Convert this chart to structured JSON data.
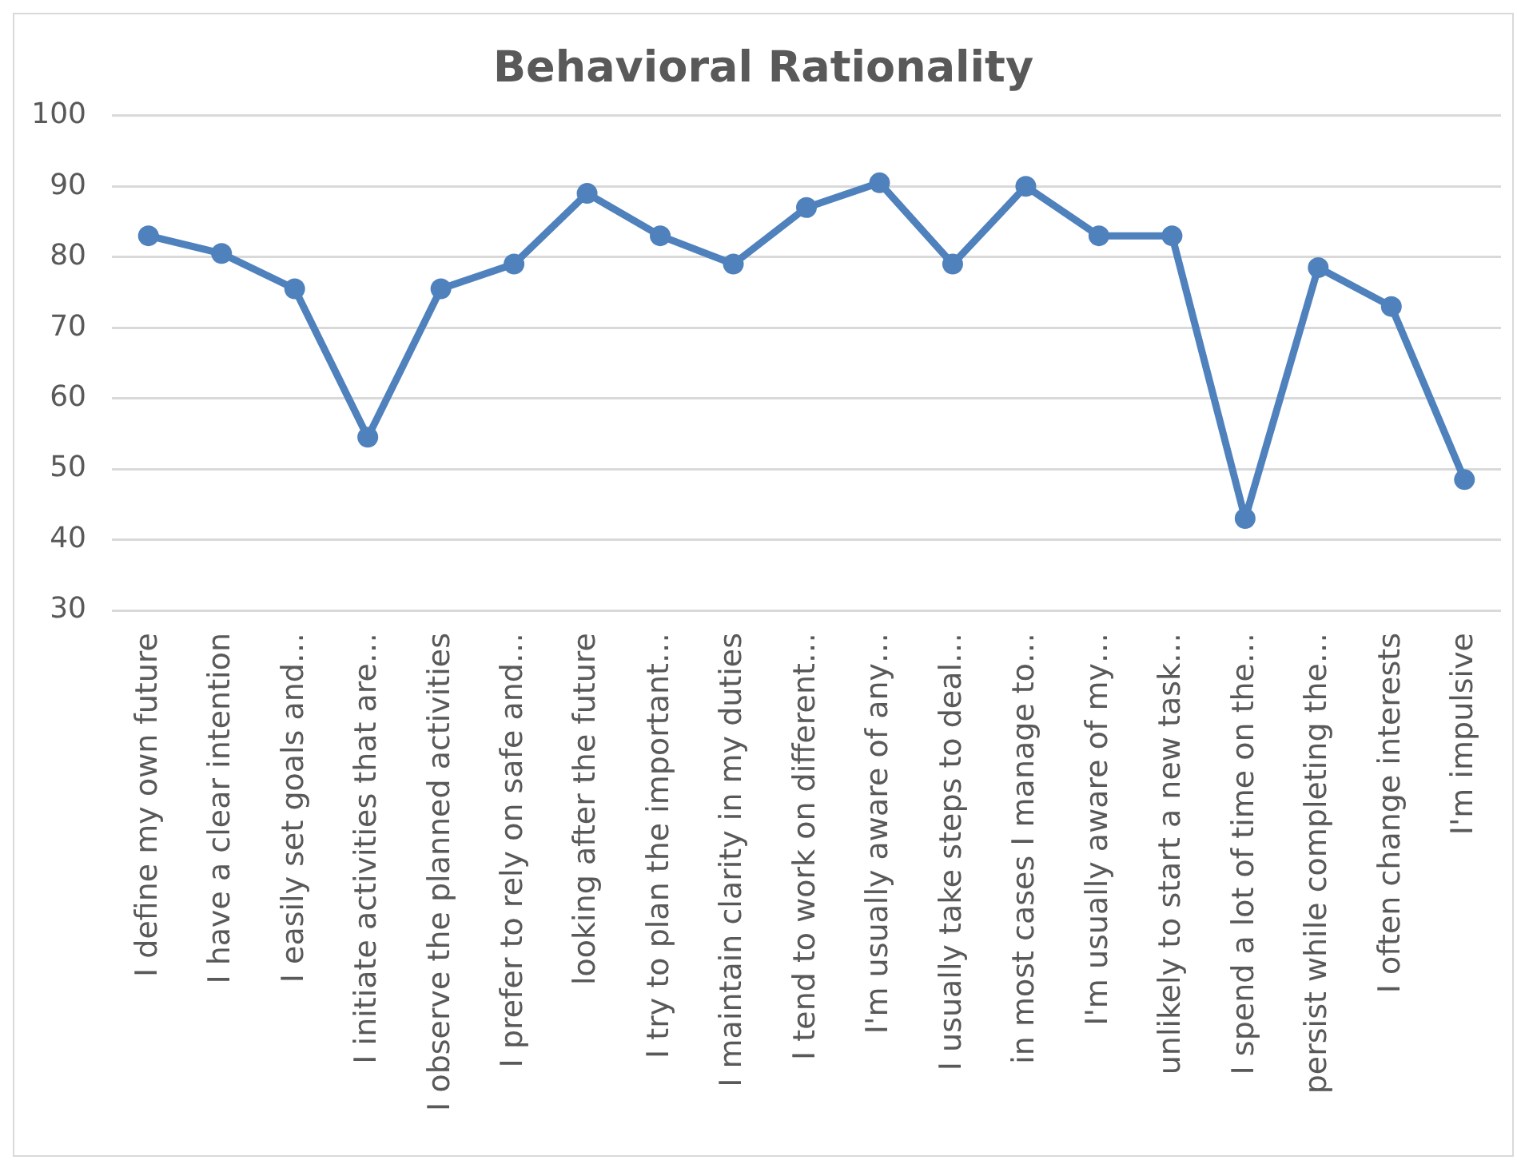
{
  "chart_data": {
    "type": "line",
    "title": "Behavioral Rationality",
    "categories": [
      "I define my own future",
      "I have a clear intention",
      "I easily set goals and…",
      "I initiate activities that are…",
      "I observe the planned activities",
      "I prefer to rely on safe and…",
      "looking after the future",
      "I try to plan the important…",
      "I maintain clarity in my duties",
      "I tend to work on different…",
      "I'm usually aware of any…",
      "I usually take steps to deal…",
      "in most cases I manage to…",
      "I'm usually aware of my…",
      "unlikely to start a new task…",
      "I spend a lot of time on the…",
      "persist while completing the…",
      "I often change interests",
      "I'm impulsive"
    ],
    "values": [
      83,
      80.5,
      75.5,
      54.5,
      75.5,
      79,
      89,
      83,
      79,
      87,
      90.5,
      79,
      90,
      83,
      83,
      43,
      78.5,
      73,
      48.5
    ],
    "color": "#4f81bd",
    "ylim": [
      30,
      100
    ],
    "yticks": [
      30,
      40,
      50,
      60,
      70,
      80,
      90,
      100
    ],
    "grid": "y",
    "marker": "circle",
    "line_style": "solid"
  }
}
